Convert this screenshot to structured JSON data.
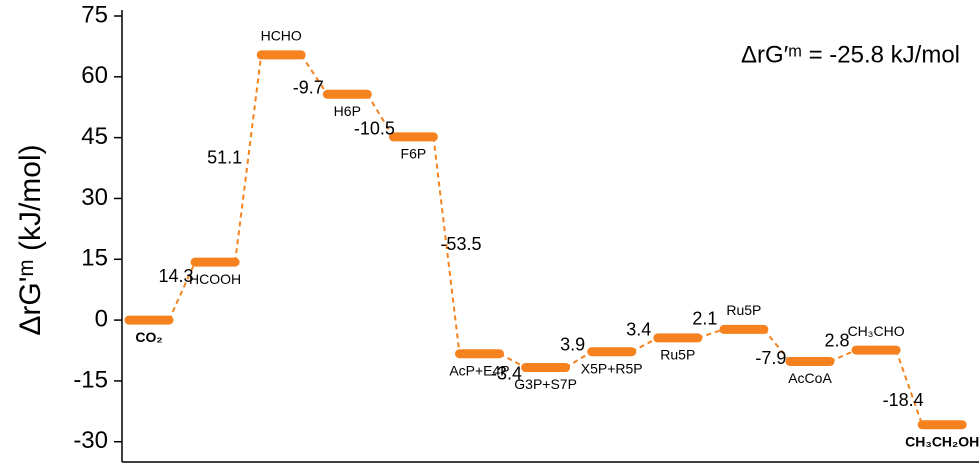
{
  "chart_data": {
    "type": "energy-profile",
    "annotation": "ΔrG′ᵐ = -25.8 kJ/mol",
    "y_label": "ΔrG'ᵐ (kJ/mol)",
    "categories": [
      "CO₂",
      "HCOOH",
      "HCHO",
      "H6P",
      "F6P",
      "AcP+E4P",
      "G3P+S7P",
      "X5P+R5P",
      "Ru5P",
      "Ru5P",
      "AcCoA",
      "CH₃CHO",
      "CH₃CH₂OH"
    ],
    "values": [
      0,
      14.3,
      65.4,
      55.7,
      45.2,
      -8.3,
      -11.7,
      -7.8,
      -4.4,
      -2.3,
      -10.2,
      -7.4,
      -25.8
    ],
    "steps": [
      14.3,
      51.1,
      -9.7,
      -10.5,
      -53.5,
      -3.4,
      3.9,
      3.4,
      2.1,
      -7.9,
      2.8,
      -18.4
    ],
    "color": "#f5821f",
    "step_label_color": "#1a1ad8",
    "category_label_colors": [
      "#e8140c",
      "#000000",
      "#000000",
      "#000000",
      "#000000",
      "#000000",
      "#000000",
      "#000000",
      "#000000",
      "#000000",
      "#000000",
      "#000000",
      "#1e7d1e"
    ],
    "ylim": [
      -35,
      75
    ],
    "yticks": [
      -30,
      -15,
      0,
      15,
      30,
      45,
      60,
      75
    ]
  }
}
